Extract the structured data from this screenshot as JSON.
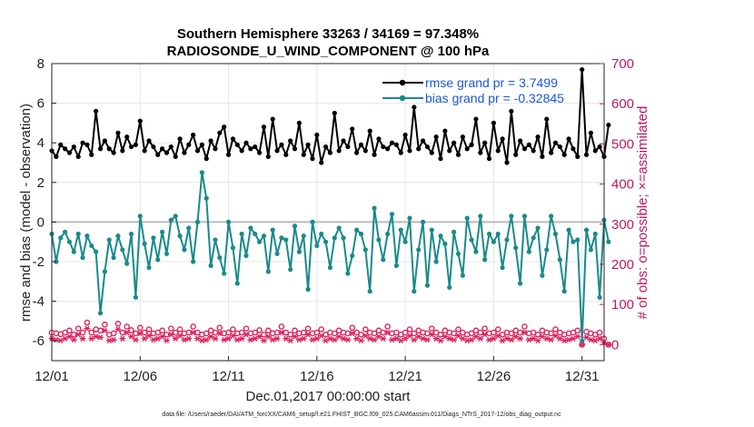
{
  "chart_data": {
    "type": "line",
    "title": "Southern Hemisphere 33263 / 34169 = 97.348%",
    "subtitle": "RADIOSONDE_U_WIND_COMPONENT @ 100 hPa",
    "xlabel": "Dec.01,2017 00:00:00 start",
    "ylabel": "rmse and bias (model - observation)",
    "y2label": "# of obs: o=possible; ×=assimilated",
    "footnote": "data file: /Users/raeder/DAI/ATM_forcXX/CAM6_setup/f.e21.FHIST_BGC.f09_025.CAM6assim.011/Diags_NTrS_2017-12/obs_diag_output.nc",
    "xlim": [
      0,
      125
    ],
    "ylim": [
      -7,
      8
    ],
    "y2lim": [
      -40,
      700
    ],
    "x_tick_labels": [
      "12/01",
      "12/06",
      "12/11",
      "12/16",
      "12/21",
      "12/26",
      "12/31"
    ],
    "x_tick_values": [
      0,
      20,
      40,
      60,
      80,
      100,
      120
    ],
    "y_ticks": [
      -6,
      -4,
      -2,
      0,
      2,
      4,
      6,
      8
    ],
    "y2_ticks": [
      0,
      100,
      200,
      300,
      400,
      500,
      600,
      700
    ],
    "zero_line": 0,
    "legend": {
      "location": "top-right",
      "entries": [
        "rmse grand pr = 3.7499",
        "bias grand pr = -0.32845"
      ]
    },
    "colors": {
      "rmse": "#000000",
      "bias": "#1a8a8a",
      "obs": "#e0245e",
      "right_axis": "#c2185b",
      "legend_text": "#1a56db",
      "zero": "#bbbbbb"
    },
    "series": [
      {
        "name": "rmse",
        "values": [
          3.6,
          3.3,
          3.9,
          3.7,
          3.5,
          3.8,
          3.3,
          4.0,
          3.9,
          3.4,
          5.6,
          3.7,
          4.1,
          3.7,
          3.5,
          4.5,
          3.6,
          4.3,
          3.8,
          3.9,
          5.1,
          3.6,
          4.1,
          3.8,
          3.4,
          3.7,
          3.5,
          3.8,
          3.3,
          4.2,
          3.5,
          3.9,
          4.4,
          3.6,
          3.9,
          3.2,
          4.1,
          3.7,
          4.5,
          4.8,
          3.4,
          4.2,
          3.9,
          3.6,
          4.0,
          3.7,
          3.8,
          3.5,
          4.8,
          3.3,
          5.2,
          3.6,
          3.9,
          3.4,
          4.1,
          3.7,
          5.0,
          3.4,
          3.9,
          3.2,
          4.4,
          3.0,
          3.8,
          3.5,
          5.5,
          3.6,
          4.1,
          3.8,
          4.7,
          3.5,
          3.9,
          3.6,
          4.6,
          3.4,
          4.2,
          3.8,
          3.7,
          4.0,
          3.9,
          3.5,
          4.4,
          3.6,
          5.8,
          3.7,
          4.1,
          3.8,
          3.5,
          4.3,
          3.2,
          4.6,
          3.6,
          4.0,
          3.4,
          4.3,
          3.7,
          3.9,
          5.2,
          3.5,
          4.0,
          3.2,
          5.0,
          3.6,
          4.2,
          3.0,
          5.6,
          3.4,
          4.1,
          3.7,
          3.9,
          3.6,
          4.3,
          3.3,
          5.2,
          3.5,
          4.0,
          3.8,
          3.4,
          4.2,
          3.7,
          3.3,
          7.7,
          3.4,
          4.5,
          3.6,
          3.8,
          3.3,
          4.9
        ]
      },
      {
        "name": "bias",
        "values": [
          -0.6,
          -2.0,
          -0.8,
          -0.5,
          -1.0,
          -1.5,
          -0.6,
          -1.8,
          -0.7,
          -1.2,
          -1.5,
          -4.6,
          -2.5,
          -0.9,
          -1.8,
          -0.7,
          -1.4,
          -2.1,
          -0.6,
          -3.8,
          0.3,
          -1.1,
          -2.3,
          -0.8,
          -1.9,
          -0.5,
          -1.6,
          0.1,
          0.3,
          -0.7,
          -1.4,
          -0.3,
          -2.0,
          0.0,
          2.5,
          1.2,
          -2.2,
          -0.9,
          -1.8,
          -2.6,
          0.0,
          -1.3,
          -3.1,
          -0.6,
          -1.7,
          -0.3,
          -0.6,
          -1.0,
          -0.7,
          -2.5,
          -0.4,
          -1.6,
          -0.8,
          -0.9,
          -2.4,
          -0.2,
          -1.5,
          -0.7,
          -3.4,
          0.0,
          -1.2,
          -0.6,
          -1.0,
          -2.3,
          -0.8,
          -0.3,
          -0.8,
          -2.6,
          -1.7,
          -0.4,
          -0.6,
          -1.4,
          -3.5,
          0.7,
          -0.9,
          -1.9,
          -0.6,
          0.4,
          -2.2,
          -0.4,
          -1.0,
          0.2,
          -3.5,
          -1.4,
          0.0,
          -3.2,
          -0.4,
          -2.0,
          -0.7,
          -1.1,
          -3.3,
          -0.5,
          -1.6,
          -2.7,
          0.2,
          -0.9,
          -1.5,
          0.3,
          -1.9,
          -0.6,
          -1.0,
          -0.6,
          -2.3,
          -0.9,
          0.3,
          -1.3,
          -3.1,
          0.3,
          -1.5,
          -0.8,
          -0.3,
          -2.7,
          -1.4,
          0.3,
          -0.6,
          -1.9,
          -3.5,
          -0.4,
          -1.0,
          -0.9,
          -6.0,
          -0.4,
          -1.4,
          -0.6,
          -3.8,
          0.1,
          -1.0
        ]
      },
      {
        "name": "obs_possible",
        "axis": "right",
        "values": [
          30,
          28,
          26,
          30,
          35,
          25,
          40,
          30,
          55,
          30,
          38,
          35,
          50,
          25,
          28,
          52,
          30,
          45,
          36,
          28,
          42,
          30,
          38,
          28,
          30,
          35,
          25,
          40,
          30,
          38,
          28,
          30,
          45,
          30,
          25,
          28,
          35,
          30,
          42,
          28,
          30,
          38,
          28,
          30,
          40,
          28,
          30,
          36,
          25,
          35,
          28,
          30,
          45,
          30,
          25,
          35,
          28,
          30,
          40,
          28,
          30,
          38,
          25,
          30,
          28,
          35,
          30,
          28,
          42,
          30,
          25,
          38,
          30,
          28,
          35,
          30,
          45,
          28,
          30,
          25,
          30,
          38,
          28,
          35,
          30,
          28,
          40,
          30,
          25,
          35,
          30,
          28,
          38,
          30,
          25,
          28,
          35,
          30,
          40,
          28,
          30,
          38,
          25,
          30,
          28,
          35,
          30,
          45,
          28,
          30,
          25,
          35,
          30,
          28,
          38,
          30,
          25,
          28,
          30,
          35,
          0,
          32,
          28,
          25,
          30,
          15,
          0
        ]
      },
      {
        "name": "obs_assimilated",
        "axis": "right",
        "values": [
          15,
          12,
          10,
          15,
          20,
          12,
          25,
          15,
          40,
          15,
          20,
          18,
          35,
          10,
          12,
          38,
          15,
          30,
          20,
          12,
          28,
          15,
          22,
          12,
          15,
          20,
          10,
          25,
          15,
          22,
          12,
          15,
          30,
          15,
          10,
          12,
          20,
          15,
          28,
          12,
          15,
          22,
          12,
          15,
          25,
          12,
          15,
          20,
          10,
          20,
          12,
          15,
          30,
          15,
          10,
          20,
          12,
          15,
          25,
          12,
          15,
          22,
          10,
          15,
          12,
          20,
          15,
          12,
          28,
          15,
          10,
          22,
          15,
          12,
          20,
          15,
          30,
          12,
          15,
          10,
          15,
          22,
          12,
          20,
          15,
          12,
          25,
          15,
          10,
          20,
          15,
          12,
          22,
          15,
          10,
          12,
          20,
          15,
          25,
          12,
          15,
          22,
          10,
          15,
          12,
          20,
          15,
          30,
          12,
          15,
          10,
          20,
          15,
          12,
          22,
          15,
          10,
          12,
          15,
          20,
          0,
          18,
          12,
          10,
          15,
          5,
          0
        ]
      }
    ]
  }
}
